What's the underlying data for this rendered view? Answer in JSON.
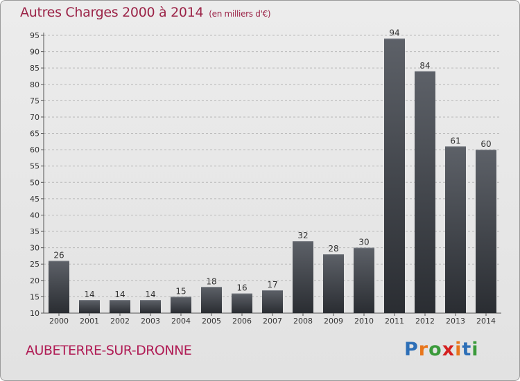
{
  "title": "Autres Charges 2000 à 2014",
  "subtitle": "(en milliers d'€)",
  "footer_label": "AUBETERRE-SUR-DRONNE",
  "logo": {
    "letters": [
      "P",
      "r",
      "o",
      "x",
      "i",
      "t",
      "i"
    ],
    "colors": [
      "#2d6fb7",
      "#e8761c",
      "#3a9a3a",
      "#d42020",
      "#e8761c",
      "#2d6fb7",
      "#3a9a3a"
    ]
  },
  "chart_data": {
    "type": "bar",
    "title": "Autres Charges 2000 à 2014",
    "categories": [
      "2000",
      "2001",
      "2002",
      "2003",
      "2004",
      "2005",
      "2006",
      "2007",
      "2008",
      "2009",
      "2010",
      "2011",
      "2012",
      "2013",
      "2014"
    ],
    "values": [
      26,
      14,
      14,
      14,
      15,
      18,
      16,
      17,
      32,
      28,
      30,
      94,
      84,
      61,
      60
    ],
    "ylim": [
      10,
      95
    ],
    "yticks": [
      10,
      15,
      20,
      25,
      30,
      35,
      40,
      45,
      50,
      55,
      60,
      65,
      70,
      75,
      80,
      85,
      90,
      95
    ],
    "grid": true,
    "bar_color": "#3a3e44"
  }
}
